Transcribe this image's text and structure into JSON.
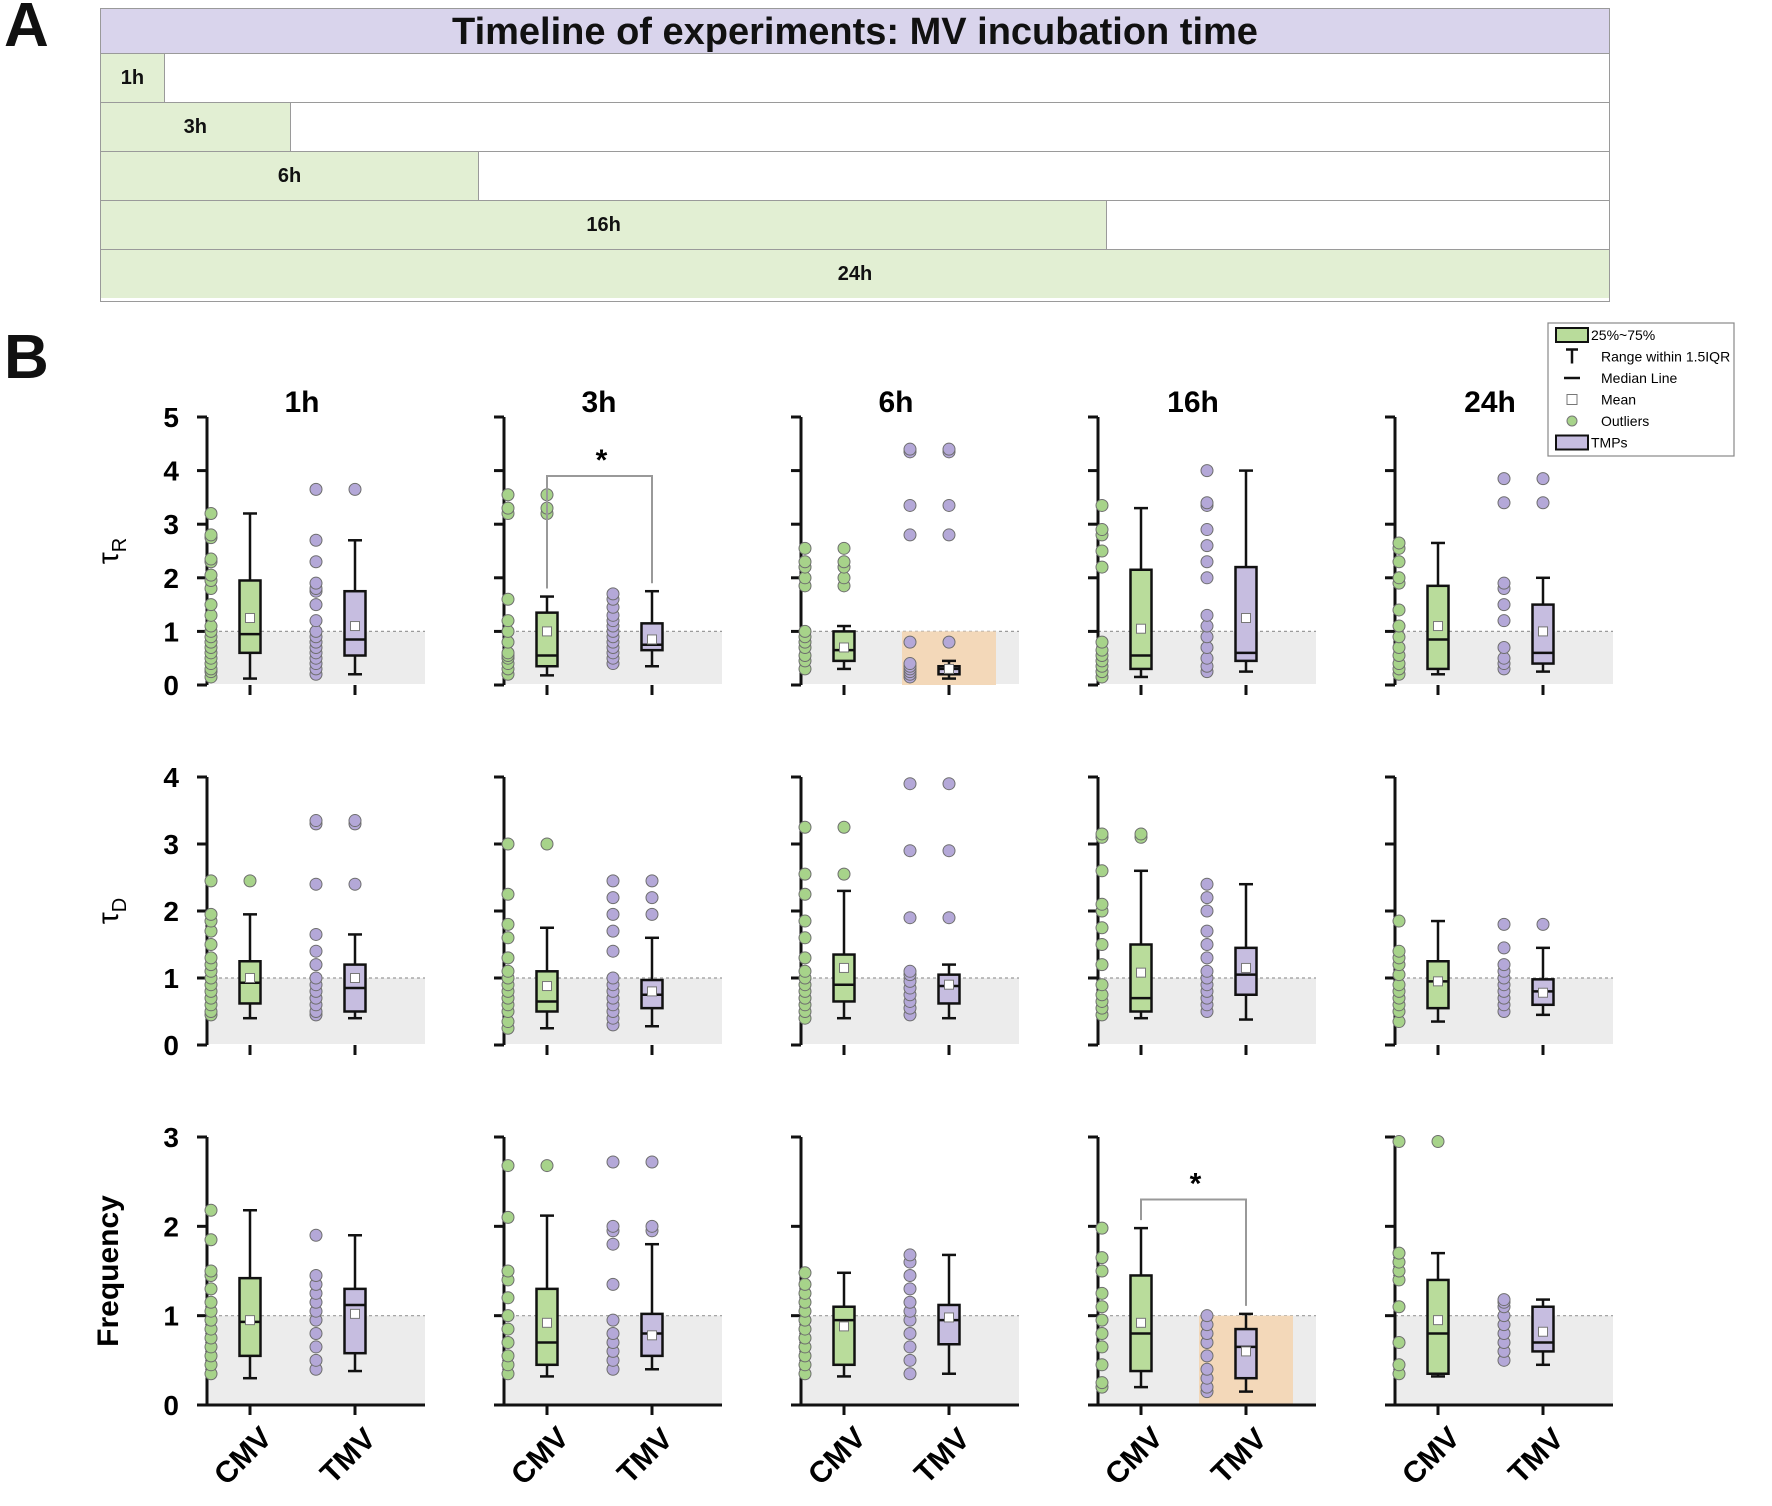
{
  "panel_a_letter": "A",
  "panel_b_letter": "B",
  "timeline": {
    "title": "Timeline of experiments: MV incubation time",
    "bars": [
      {
        "label": "1h",
        "hours": 1
      },
      {
        "label": "3h",
        "hours": 3
      },
      {
        "label": "6h",
        "hours": 6
      },
      {
        "label": "16h",
        "hours": 16
      },
      {
        "label": "24h",
        "hours": 24
      }
    ]
  },
  "colors": {
    "cmv": "#b9dc9b",
    "tmv": "#c6bde0",
    "cmv_dot": "#a7d38a",
    "tmv_dot": "#b4a8d8",
    "highlight": "#f3d8b9",
    "band": "#ececec"
  },
  "chart_data": {
    "type": "box",
    "columns": [
      "1h",
      "3h",
      "6h",
      "16h",
      "24h"
    ],
    "groups": [
      "CMV",
      "TMV"
    ],
    "legend": {
      "position": "top-right",
      "entries": [
        "25%~75%",
        "Range within 1.5IQR",
        "Median Line",
        "Mean",
        "Outliers",
        "TMPs"
      ]
    },
    "rows": [
      {
        "ylabel": "τ",
        "ylabel_sub": "R",
        "ylim": [
          0,
          5
        ],
        "ticks": [
          "0",
          "1",
          "2",
          "3",
          "4",
          "5"
        ],
        "reference": 1,
        "panels": [
          {
            "cmv": {
              "q1": 0.6,
              "median": 0.95,
              "q3": 1.95,
              "wlow": 0.12,
              "whigh": 3.2,
              "mean": 1.25,
              "points": [
                0.15,
                0.25,
                0.3,
                0.4,
                0.5,
                0.6,
                0.7,
                0.8,
                0.9,
                1.0,
                1.1,
                1.3,
                1.5,
                1.8,
                1.95,
                2.05,
                2.3,
                2.35,
                2.75,
                2.8,
                3.2
              ]
            },
            "tmv": {
              "q1": 0.55,
              "median": 0.85,
              "q3": 1.75,
              "wlow": 0.2,
              "whigh": 2.7,
              "mean": 1.1,
              "points": [
                0.2,
                0.3,
                0.4,
                0.5,
                0.6,
                0.7,
                0.8,
                0.9,
                1.0,
                1.2,
                1.5,
                1.75,
                1.8,
                1.9,
                2.3,
                2.7,
                3.65
              ],
              "outliers": [
                3.65
              ]
            }
          },
          {
            "cmv": {
              "q1": 0.35,
              "median": 0.55,
              "q3": 1.35,
              "wlow": 0.18,
              "whigh": 1.65,
              "mean": 1.0,
              "points": [
                0.2,
                0.3,
                0.4,
                0.5,
                0.55,
                0.6,
                0.8,
                1.0,
                1.2,
                1.6,
                3.2,
                3.3,
                3.55
              ],
              "outliers": [
                3.2,
                3.3,
                3.55
              ]
            },
            "tmv": {
              "q1": 0.65,
              "median": 0.75,
              "q3": 1.15,
              "wlow": 0.35,
              "whigh": 1.75,
              "mean": 0.85,
              "points": [
                0.4,
                0.5,
                0.6,
                0.7,
                0.8,
                0.9,
                1.0,
                1.1,
                1.2,
                1.3,
                1.45,
                1.6,
                1.7
              ]
            }
          },
          {
            "cmv": {
              "q1": 0.45,
              "median": 0.65,
              "q3": 1.0,
              "wlow": 0.3,
              "whigh": 1.1,
              "mean": 0.7,
              "points": [
                0.3,
                0.45,
                0.55,
                0.7,
                0.8,
                0.9,
                1.0,
                1.85,
                2.0,
                2.2,
                2.3,
                2.55
              ],
              "outliers": [
                1.85,
                2.0,
                2.2,
                2.3,
                2.55
              ]
            },
            "tmv": {
              "q1": 0.2,
              "median": 0.3,
              "q3": 0.35,
              "wlow": 0.12,
              "whigh": 0.45,
              "mean": 0.3,
              "points": [
                0.15,
                0.2,
                0.25,
                0.3,
                0.35,
                0.4,
                0.8,
                2.8,
                3.35,
                4.35,
                4.4
              ],
              "outliers": [
                0.8,
                2.8,
                3.35,
                4.35,
                4.4
              ],
              "highlight": true
            }
          },
          {
            "cmv": {
              "q1": 0.3,
              "median": 0.55,
              "q3": 2.15,
              "wlow": 0.15,
              "whigh": 3.3,
              "mean": 1.05,
              "points": [
                0.15,
                0.25,
                0.35,
                0.45,
                0.55,
                0.65,
                0.8,
                2.2,
                2.5,
                2.8,
                2.9,
                3.35
              ]
            },
            "tmv": {
              "q1": 0.45,
              "median": 0.6,
              "q3": 2.2,
              "wlow": 0.25,
              "whigh": 4.0,
              "mean": 1.25,
              "points": [
                0.25,
                0.35,
                0.5,
                0.7,
                0.9,
                1.1,
                1.3,
                2.0,
                2.3,
                2.6,
                2.9,
                3.35,
                3.4,
                4.0
              ]
            }
          },
          {
            "cmv": {
              "q1": 0.3,
              "median": 0.85,
              "q3": 1.85,
              "wlow": 0.2,
              "whigh": 2.65,
              "mean": 1.1,
              "points": [
                0.2,
                0.3,
                0.4,
                0.55,
                0.7,
                0.9,
                1.1,
                1.4,
                1.9,
                2.0,
                2.3,
                2.55,
                2.65
              ]
            },
            "tmv": {
              "q1": 0.4,
              "median": 0.6,
              "q3": 1.5,
              "wlow": 0.25,
              "whigh": 2.0,
              "mean": 1.0,
              "points": [
                0.3,
                0.4,
                0.5,
                0.7,
                1.2,
                1.5,
                1.8,
                1.9,
                3.4,
                3.85
              ],
              "outliers": [
                3.4,
                3.85
              ]
            }
          }
        ]
      },
      {
        "ylabel": "τ",
        "ylabel_sub": "D",
        "ylim": [
          0,
          4
        ],
        "ticks": [
          "0",
          "1",
          "2",
          "3",
          "4"
        ],
        "reference": 1,
        "panels": [
          {
            "cmv": {
              "q1": 0.62,
              "median": 0.93,
              "q3": 1.25,
              "wlow": 0.4,
              "whigh": 1.95,
              "mean": 1.0,
              "points": [
                0.45,
                0.5,
                0.6,
                0.7,
                0.8,
                0.9,
                1.0,
                1.1,
                1.2,
                1.3,
                1.5,
                1.7,
                1.85,
                1.95,
                2.45
              ],
              "outliers": [
                2.45
              ]
            },
            "tmv": {
              "q1": 0.5,
              "median": 0.85,
              "q3": 1.2,
              "wlow": 0.4,
              "whigh": 1.65,
              "mean": 1.0,
              "points": [
                0.45,
                0.5,
                0.6,
                0.7,
                0.8,
                0.9,
                1.0,
                1.2,
                1.4,
                1.65,
                2.4,
                3.3,
                3.35
              ],
              "outliers": [
                2.4,
                3.3,
                3.35
              ]
            }
          },
          {
            "cmv": {
              "q1": 0.5,
              "median": 0.65,
              "q3": 1.1,
              "wlow": 0.25,
              "whigh": 1.75,
              "mean": 0.88,
              "points": [
                0.25,
                0.35,
                0.5,
                0.6,
                0.7,
                0.8,
                0.9,
                1.0,
                1.1,
                1.3,
                1.6,
                1.8,
                2.25,
                3.0
              ],
              "outliers": [
                3.0
              ]
            },
            "tmv": {
              "q1": 0.55,
              "median": 0.75,
              "q3": 0.97,
              "wlow": 0.28,
              "whigh": 1.6,
              "mean": 0.8,
              "points": [
                0.3,
                0.4,
                0.5,
                0.6,
                0.7,
                0.8,
                0.9,
                1.0,
                1.4,
                1.7,
                1.95,
                2.2,
                2.45
              ],
              "outliers": [
                1.95,
                2.2,
                2.45
              ]
            }
          },
          {
            "cmv": {
              "q1": 0.65,
              "median": 0.9,
              "q3": 1.35,
              "wlow": 0.4,
              "whigh": 2.3,
              "mean": 1.15,
              "points": [
                0.4,
                0.5,
                0.6,
                0.7,
                0.8,
                0.9,
                1.0,
                1.1,
                1.3,
                1.6,
                1.85,
                2.25,
                2.55,
                3.25
              ],
              "outliers": [
                2.55,
                3.25
              ]
            },
            "tmv": {
              "q1": 0.62,
              "median": 0.88,
              "q3": 1.05,
              "wlow": 0.4,
              "whigh": 1.2,
              "mean": 0.9,
              "points": [
                0.45,
                0.55,
                0.65,
                0.75,
                0.85,
                0.95,
                1.05,
                1.1,
                1.9,
                2.9,
                3.9
              ],
              "outliers": [
                1.9,
                2.9,
                3.9
              ]
            }
          },
          {
            "cmv": {
              "q1": 0.5,
              "median": 0.7,
              "q3": 1.5,
              "wlow": 0.4,
              "whigh": 2.6,
              "mean": 1.08,
              "points": [
                0.45,
                0.55,
                0.65,
                0.75,
                0.9,
                1.2,
                1.5,
                1.75,
                2.0,
                2.1,
                2.6,
                3.1,
                3.15
              ],
              "outliers": [
                3.1,
                3.15
              ]
            },
            "tmv": {
              "q1": 0.75,
              "median": 1.05,
              "q3": 1.45,
              "wlow": 0.38,
              "whigh": 2.4,
              "mean": 1.15,
              "points": [
                0.5,
                0.6,
                0.7,
                0.8,
                0.9,
                1.0,
                1.1,
                1.3,
                1.5,
                1.7,
                2.0,
                2.2,
                2.4
              ]
            }
          },
          {
            "cmv": {
              "q1": 0.55,
              "median": 0.95,
              "q3": 1.25,
              "wlow": 0.35,
              "whigh": 1.85,
              "mean": 0.95,
              "points": [
                0.35,
                0.5,
                0.6,
                0.7,
                0.8,
                0.9,
                1.05,
                1.2,
                1.3,
                1.4,
                1.85
              ]
            },
            "tmv": {
              "q1": 0.6,
              "median": 0.8,
              "q3": 0.98,
              "wlow": 0.45,
              "whigh": 1.45,
              "mean": 0.78,
              "points": [
                0.5,
                0.6,
                0.7,
                0.8,
                0.9,
                1.0,
                1.1,
                1.2,
                1.45,
                1.8
              ],
              "outliers": [
                1.8
              ]
            }
          }
        ]
      },
      {
        "ylabel": "Frequency",
        "ylabel_sub": "",
        "ylim": [
          0,
          3
        ],
        "ticks": [
          "0",
          "1",
          "2",
          "3"
        ],
        "reference": 1,
        "panels": [
          {
            "cmv": {
              "q1": 0.55,
              "median": 0.93,
              "q3": 1.42,
              "wlow": 0.3,
              "whigh": 2.18,
              "mean": 0.95,
              "points": [
                0.35,
                0.45,
                0.55,
                0.65,
                0.75,
                0.85,
                0.95,
                1.05,
                1.15,
                1.3,
                1.45,
                1.5,
                1.85,
                2.18
              ]
            },
            "tmv": {
              "q1": 0.58,
              "median": 1.12,
              "q3": 1.3,
              "wlow": 0.38,
              "whigh": 1.9,
              "mean": 1.02,
              "points": [
                0.4,
                0.5,
                0.65,
                0.8,
                0.95,
                1.05,
                1.15,
                1.25,
                1.35,
                1.45,
                1.9
              ]
            }
          },
          {
            "cmv": {
              "q1": 0.45,
              "median": 0.7,
              "q3": 1.3,
              "wlow": 0.32,
              "whigh": 2.12,
              "mean": 0.92,
              "points": [
                0.35,
                0.45,
                0.55,
                0.7,
                0.85,
                1.0,
                1.2,
                1.4,
                1.5,
                2.1,
                2.68
              ],
              "outliers": [
                2.68
              ]
            },
            "tmv": {
              "q1": 0.55,
              "median": 0.8,
              "q3": 1.02,
              "wlow": 0.4,
              "whigh": 1.8,
              "mean": 0.78,
              "points": [
                0.4,
                0.5,
                0.6,
                0.7,
                0.8,
                0.95,
                1.35,
                1.8,
                1.95,
                2.0,
                2.72
              ],
              "outliers": [
                1.95,
                2.0,
                2.72
              ]
            }
          },
          {
            "cmv": {
              "q1": 0.45,
              "median": 0.95,
              "q3": 1.1,
              "wlow": 0.32,
              "whigh": 1.48,
              "mean": 0.88,
              "points": [
                0.35,
                0.45,
                0.55,
                0.65,
                0.75,
                0.85,
                0.95,
                1.05,
                1.15,
                1.25,
                1.35,
                1.48
              ]
            },
            "tmv": {
              "q1": 0.68,
              "median": 0.95,
              "q3": 1.12,
              "wlow": 0.35,
              "whigh": 1.68,
              "mean": 0.98,
              "points": [
                0.35,
                0.5,
                0.65,
                0.8,
                0.95,
                1.05,
                1.15,
                1.3,
                1.45,
                1.6,
                1.68
              ]
            }
          },
          {
            "cmv": {
              "q1": 0.38,
              "median": 0.8,
              "q3": 1.45,
              "wlow": 0.2,
              "whigh": 1.98,
              "mean": 0.92,
              "points": [
                0.2,
                0.25,
                0.45,
                0.65,
                0.8,
                0.95,
                1.1,
                1.25,
                1.5,
                1.65,
                1.98
              ]
            },
            "tmv": {
              "q1": 0.3,
              "median": 0.65,
              "q3": 0.85,
              "wlow": 0.15,
              "whigh": 1.02,
              "mean": 0.6,
              "points": [
                0.15,
                0.2,
                0.3,
                0.4,
                0.55,
                0.7,
                0.8,
                0.9,
                1.0
              ],
              "highlight": true
            }
          },
          {
            "cmv": {
              "q1": 0.35,
              "median": 0.8,
              "q3": 1.4,
              "wlow": 0.32,
              "whigh": 1.7,
              "mean": 0.95,
              "points": [
                0.35,
                0.45,
                0.7,
                1.1,
                1.4,
                1.5,
                1.6,
                1.7,
                2.95
              ],
              "outliers": [
                2.95
              ]
            },
            "tmv": {
              "q1": 0.6,
              "median": 0.7,
              "q3": 1.1,
              "wlow": 0.45,
              "whigh": 1.18,
              "mean": 0.82,
              "points": [
                0.5,
                0.6,
                0.7,
                0.8,
                0.9,
                1.0,
                1.1,
                1.15,
                1.18
              ]
            }
          }
        ]
      }
    ],
    "significance": [
      {
        "row": 0,
        "panel": 1,
        "label": "*",
        "y": 3.9
      },
      {
        "row": 2,
        "panel": 3,
        "label": "*",
        "y": 2.3
      }
    ]
  }
}
